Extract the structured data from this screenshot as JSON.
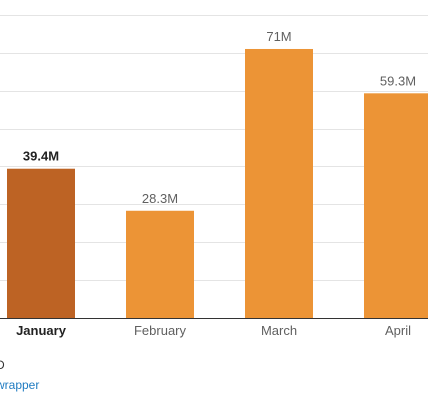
{
  "chart_data": {
    "type": "bar",
    "categories": [
      "January",
      "February",
      "March",
      "April"
    ],
    "values": [
      39.4,
      28.3,
      71,
      59.3
    ],
    "data_labels": [
      "39.4M",
      "28.3M",
      "71M",
      "59.3M"
    ],
    "highlighted_category": "January",
    "title": "",
    "xlabel": "",
    "ylabel": "",
    "ylim": [
      0,
      83
    ],
    "grid": true,
    "legend": "none"
  },
  "colors": {
    "bar": "#ec9436",
    "bar_highlight": "#bd6324",
    "gridline": "#e4e4e4",
    "axis_line": "#333333",
    "label_text": "#606060",
    "highlight_text": "#222222",
    "link": "#1f7bc1"
  },
  "footer": {
    "partial_text": "D",
    "link_text": "wrapper"
  }
}
